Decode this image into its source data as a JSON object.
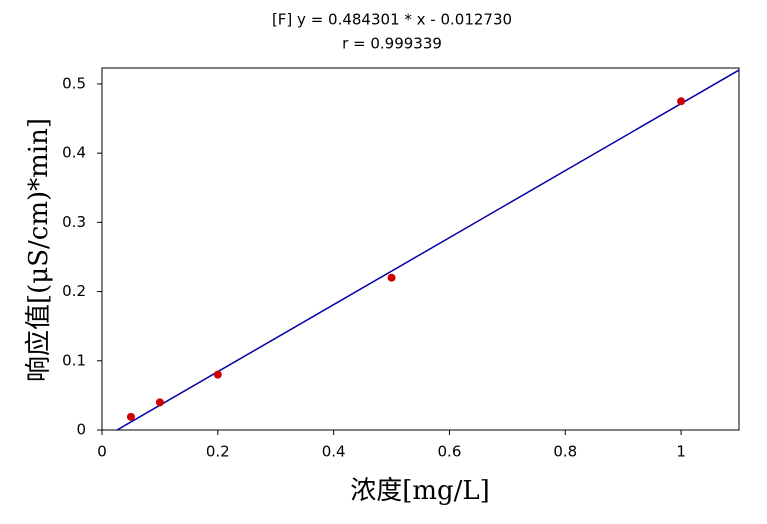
{
  "chart_data": {
    "type": "scatter",
    "title": "[F] y = 0.484301 * x - 0.012730",
    "subtitle": "r = 0.999339",
    "x_label": "浓度[mg/L]",
    "y_label": "响应值[(μS/cm)*min]",
    "xlim": [
      0,
      1.1
    ],
    "ylim": [
      0,
      0.523
    ],
    "xticks": [
      0,
      0.2,
      0.4,
      0.6,
      0.8,
      1
    ],
    "yticks": [
      0,
      0.1,
      0.2,
      0.3,
      0.4,
      0.5
    ],
    "series": [
      {
        "type": "scatter",
        "color": "#cc0000",
        "x": [
          0.05,
          0.1,
          0.2,
          0.5,
          1.0
        ],
        "values": [
          0.019,
          0.04,
          0.08,
          0.22,
          0.475
        ]
      },
      {
        "type": "line",
        "color": "#0000aa",
        "x": [
          0.026,
          1.1
        ],
        "values": [
          0,
          0.52
        ]
      }
    ]
  }
}
